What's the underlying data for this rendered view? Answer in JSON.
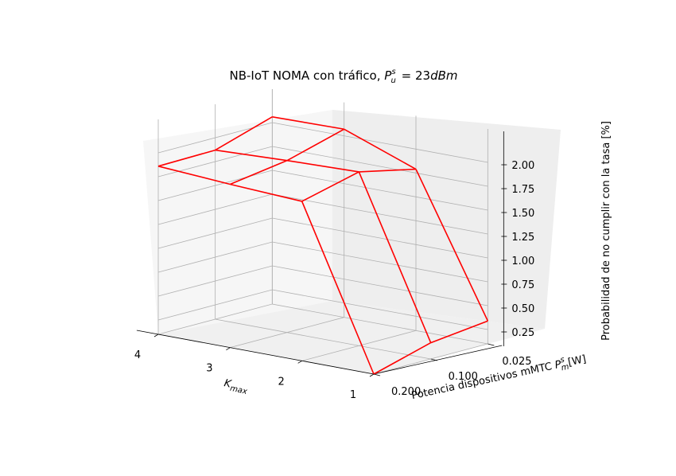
{
  "chart_data": {
    "type": "line",
    "title": "NB-IoT NOMA con tráfico, P_u^s = 23dBm",
    "xlabel": "K_max",
    "ylabel": "Potencia dispositivos mMTC P_m^s[W]",
    "zlabel": "Probabilidad de no cumplir con la tasa [%]",
    "x_ticks": [
      "4",
      "3",
      "2",
      "1"
    ],
    "y_ticks": [
      "0.025",
      "0.100",
      "0.200"
    ],
    "z_ticks": [
      "0.25",
      "0.50",
      "0.75",
      "1.00",
      "1.25",
      "1.50",
      "1.75",
      "2.00"
    ],
    "grid": true,
    "series": [
      {
        "values": [
          [
            [
              1,
              0.2,
              0.1
            ],
            [
              1,
              0.1,
              0.27
            ],
            [
              1,
              0.025,
              0.34
            ]
          ],
          [
            [
              2,
              0.2,
              1.77
            ],
            [
              2,
              0.1,
              1.92
            ],
            [
              2,
              0.025,
              1.79
            ]
          ],
          [
            [
              3,
              0.2,
              1.81
            ],
            [
              3,
              0.1,
              1.9
            ],
            [
              3,
              0.025,
              2.07
            ]
          ],
          [
            [
              4,
              0.2,
              1.86
            ],
            [
              4,
              0.1,
              1.87
            ],
            [
              4,
              0.025,
              2.06
            ]
          ]
        ]
      }
    ],
    "color": "#ff0000"
  }
}
